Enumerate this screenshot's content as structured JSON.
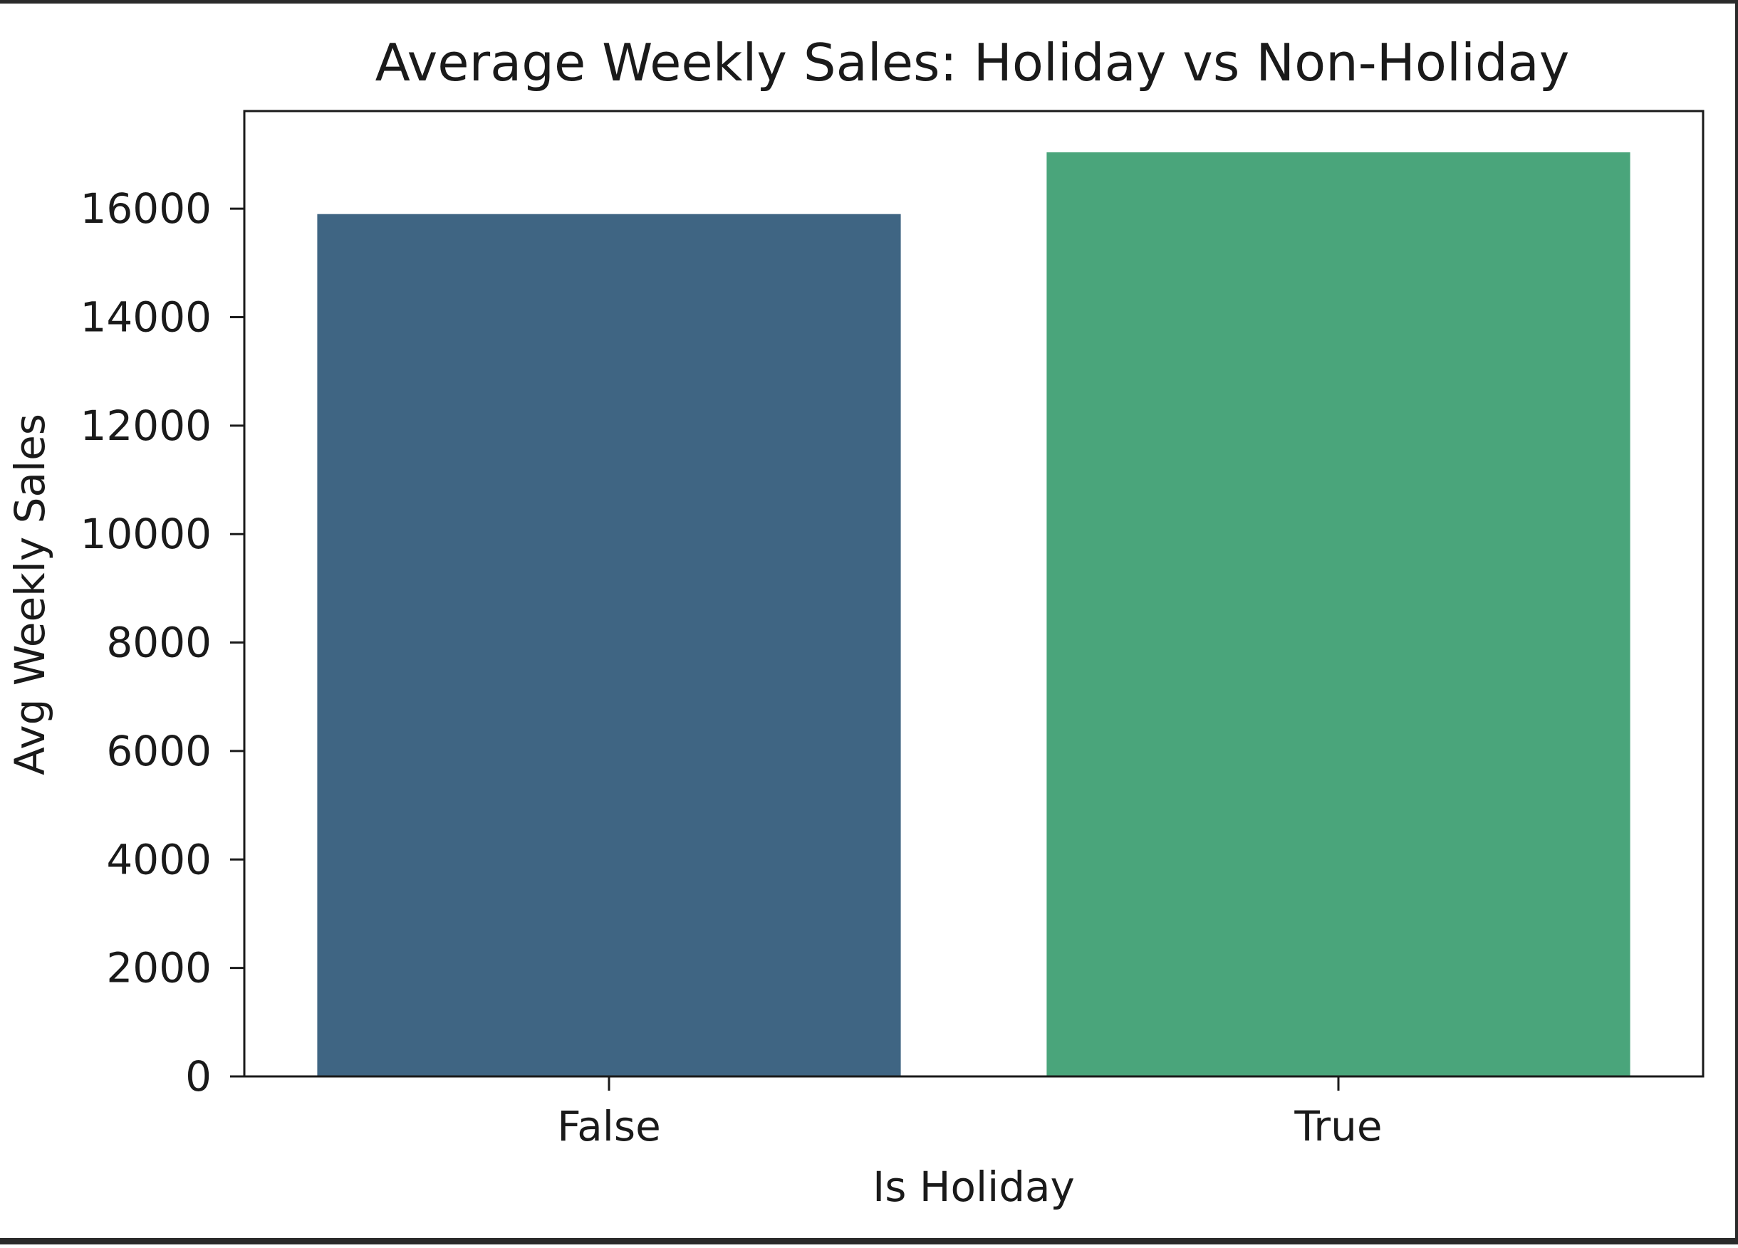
{
  "chart_data": {
    "type": "bar",
    "title": "Average Weekly Sales: Holiday vs Non-Holiday",
    "xlabel": "Is Holiday",
    "ylabel": "Avg Weekly Sales",
    "categories": [
      "False",
      "True"
    ],
    "values": [
      15900,
      17040
    ],
    "colors": [
      "#3f6583",
      "#4aa57b"
    ],
    "ylim": [
      0,
      17800
    ],
    "yticks": [
      0,
      2000,
      4000,
      6000,
      8000,
      10000,
      12000,
      14000,
      16000
    ],
    "grid": false,
    "legend": "none"
  }
}
